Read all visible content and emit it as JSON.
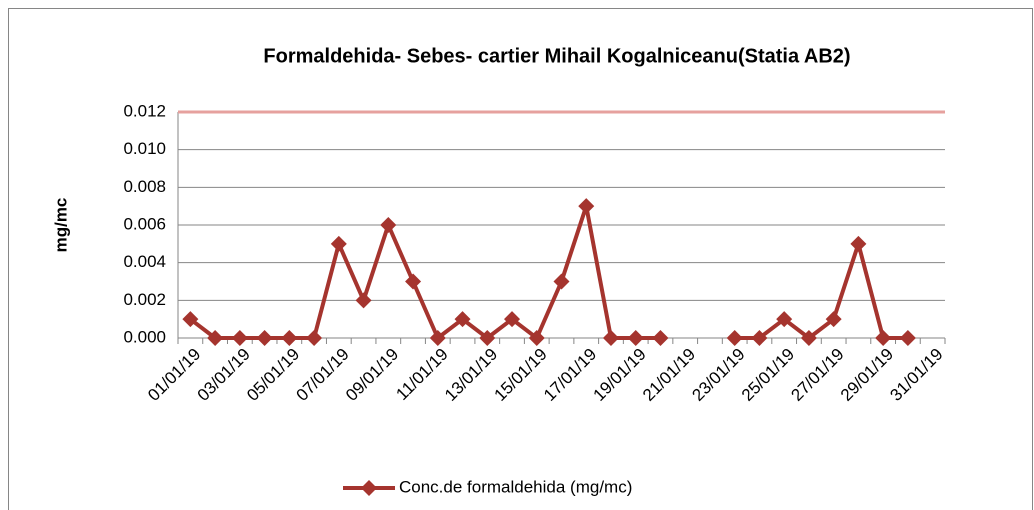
{
  "chart_data": {
    "type": "line",
    "title": "Formaldehida- Sebes-  cartier Mihail Kogalniceanu(Statia AB2)",
    "y_label": "mg/mc",
    "categories": [
      "01/01/19",
      null,
      "03/01/19",
      null,
      "05/01/19",
      null,
      "07/01/19",
      null,
      "09/01/19",
      null,
      "11/01/19",
      null,
      "13/01/19",
      null,
      "15/01/19",
      null,
      "17/01/19",
      null,
      "19/01/19",
      null,
      "21/01/19",
      null,
      "23/01/19",
      null,
      "25/01/19",
      null,
      "27/01/19",
      null,
      "29/01/19",
      null,
      "31/01/19"
    ],
    "series": [
      {
        "name": "Conc.de formaldehida (mg/mc)",
        "color": "#a5342e",
        "values": [
          0.001,
          0,
          0,
          0,
          0,
          0,
          0.005,
          0.002,
          0.006,
          0.003,
          0,
          0.001,
          0,
          0.001,
          0,
          0.003,
          0.007,
          0,
          0,
          0,
          null,
          null,
          0,
          0,
          0.001,
          0,
          0.001,
          0.005,
          0,
          0,
          null
        ]
      }
    ],
    "reference_line": 0.012,
    "reference_color": "#e6a19e",
    "ylim": [
      0,
      0.012
    ],
    "yticks": [
      {
        "value": 0,
        "label": "0.000"
      },
      {
        "value": 0.002,
        "label": "0.002"
      },
      {
        "value": 0.004,
        "label": "0.004"
      },
      {
        "value": 0.006,
        "label": "0.006"
      },
      {
        "value": 0.008,
        "label": "0.008"
      },
      {
        "value": 0.01,
        "label": "0.010"
      },
      {
        "value": 0.012,
        "label": "0.012"
      }
    ],
    "grid": true,
    "legend": "bottom"
  }
}
